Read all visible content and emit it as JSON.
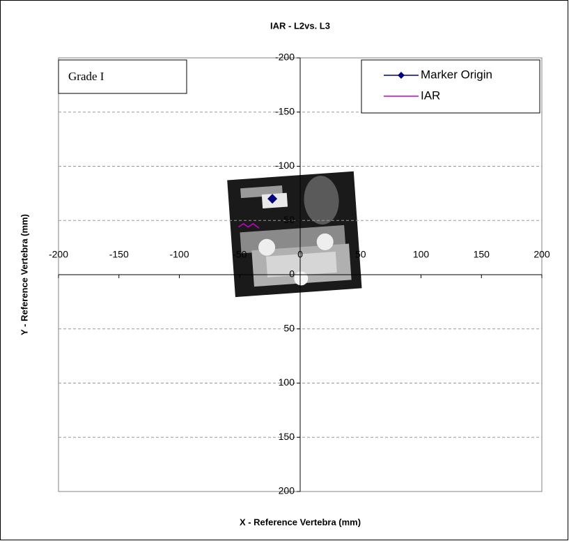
{
  "chart_data": {
    "type": "scatter",
    "title": "IAR - L2vs. L3",
    "x_label": "X - Reference Vertebra  (mm)",
    "y_label": "Y - Reference Vertebra (mm)",
    "annotation": "Grade I",
    "series": [
      {
        "name": "Marker Origin",
        "color": "#000080",
        "marker": "diamond",
        "x": [
          -23
        ],
        "values": [
          -70
        ]
      },
      {
        "name": "IAR",
        "color": "#cc00cc",
        "x": [
          -51,
          -47,
          -43,
          -39,
          -34
        ],
        "values": [
          -44,
          -47,
          -44,
          -47,
          -43
        ]
      }
    ],
    "xlim": [
      -200,
      200
    ],
    "ylim": [
      200,
      -200
    ],
    "xticks": [
      -200,
      -150,
      -100,
      -50,
      0,
      50,
      100,
      150,
      200
    ],
    "yticks": [
      -200,
      -150,
      -100,
      -50,
      0,
      50,
      100,
      150,
      200
    ],
    "grid": true,
    "legend": "upper right"
  }
}
